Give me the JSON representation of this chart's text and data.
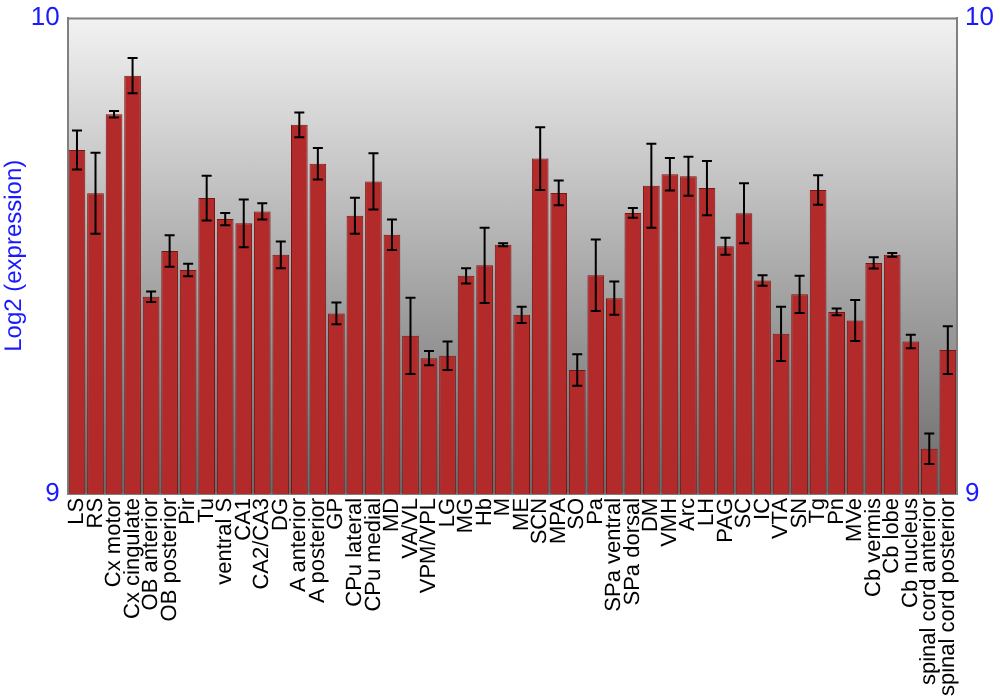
{
  "chart_data": {
    "type": "bar",
    "ylabel": "Log2 (expression)",
    "categories": [
      "LS",
      "RS",
      "Cx motor",
      "Cx cingulate",
      "OB anterior",
      "OB posterior",
      "Pir",
      "Tu",
      "ventral S",
      "CA1",
      "CA2/CA3",
      "DG",
      "A anterior",
      "A posterior",
      "GP",
      "CPu lateral",
      "CPu medial",
      "MD",
      "VA/VL",
      "VPM/VPL",
      "LG",
      "MG",
      "Hb",
      "M",
      "ME",
      "SCN",
      "MPA",
      "SO",
      "Pa",
      "SPa ventral",
      "SPa dorsal",
      "DM",
      "VMH",
      "Arc",
      "LH",
      "PAG",
      "SC",
      "IC",
      "VTA",
      "SN",
      "Tg",
      "Pn",
      "MVe",
      "Cb vermis",
      "Cb lobe",
      "Cb nucleus",
      "spinal cord anterior",
      "spinal cord posterior"
    ],
    "values": [
      9.722,
      9.631,
      9.797,
      9.878,
      9.414,
      9.51,
      9.47,
      9.621,
      9.577,
      9.568,
      9.593,
      9.502,
      9.775,
      9.693,
      9.379,
      9.584,
      9.656,
      9.544,
      9.332,
      9.285,
      9.29,
      9.458,
      9.48,
      9.523,
      9.376,
      9.704,
      9.632,
      9.26,
      9.459,
      9.411,
      9.59,
      9.647,
      9.671,
      9.667,
      9.642,
      9.52,
      9.589,
      9.448,
      9.336,
      9.419,
      9.638,
      9.382,
      9.364,
      9.485,
      9.502,
      9.32,
      9.095,
      9.302
    ],
    "errors": [
      0.041,
      0.085,
      0.007,
      0.037,
      0.011,
      0.033,
      0.013,
      0.047,
      0.013,
      0.05,
      0.017,
      0.028,
      0.026,
      0.033,
      0.023,
      0.038,
      0.059,
      0.032,
      0.08,
      0.015,
      0.03,
      0.016,
      0.079,
      0.003,
      0.017,
      0.066,
      0.026,
      0.033,
      0.075,
      0.035,
      0.01,
      0.088,
      0.034,
      0.041,
      0.057,
      0.018,
      0.063,
      0.011,
      0.057,
      0.039,
      0.031,
      0.007,
      0.043,
      0.012,
      0.004,
      0.014,
      0.032,
      0.05
    ],
    "color": "#b22a2a",
    "ylim": [
      9,
      10
    ],
    "yticks": [
      9,
      10
    ],
    "y2lim": [
      9,
      10
    ],
    "y2ticks": [
      9,
      10
    ],
    "grid": false,
    "legend": false
  }
}
